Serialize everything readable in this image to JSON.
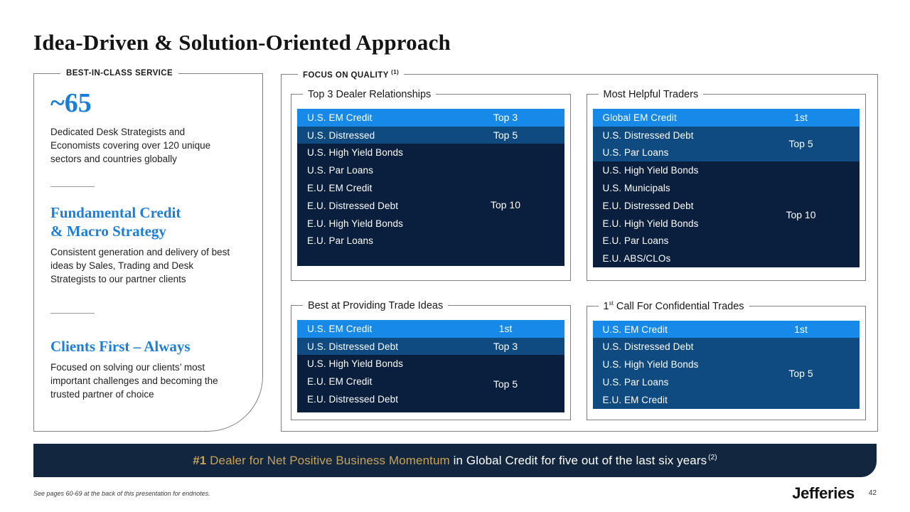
{
  "slide": {
    "title": "Idea-Driven & Solution-Oriented Approach",
    "footnote": "See pages 60-69 at the back of this presentation for endnotes.",
    "logo_text": "Jefferies",
    "page_number": "42"
  },
  "left_panel": {
    "legend": "BEST-IN-CLASS SERVICE",
    "stat_value": "~65",
    "stat_description": "Dedicated Desk Strategists and Economists covering over 120 unique sectors and countries globally",
    "sections": [
      {
        "heading_lines": [
          "Fundamental Credit",
          "& Macro Strategy"
        ],
        "body": "Consistent generation and delivery of best ideas by Sales, Trading and Desk Strategists to our partner clients"
      },
      {
        "heading_lines": [
          "Clients First – Always"
        ],
        "body": "Focused on solving our clients’ most important challenges and becoming the trusted partner of choice"
      }
    ]
  },
  "quality_panel": {
    "legend": "FOCUS ON QUALITY",
    "legend_sup": "(1)",
    "boxes": [
      {
        "title": "Top 3 Dealer Relationships",
        "groups": [
          {
            "value": "Top 3",
            "rows": [
              "U.S. EM Credit"
            ]
          },
          {
            "value": "Top 5",
            "rows": [
              "U.S. Distressed"
            ]
          },
          {
            "value": "Top 10",
            "rows": [
              "U.S. High Yield Bonds",
              "U.S. Par Loans",
              "E.U. EM Credit",
              "E.U. Distressed Debt",
              "E.U. High Yield Bonds",
              "E.U. Par Loans"
            ]
          }
        ]
      },
      {
        "title": "Most Helpful Traders",
        "groups": [
          {
            "value": "1st",
            "rows": [
              "Global EM Credit"
            ]
          },
          {
            "value": "Top 5",
            "rows": [
              "U.S. Distressed Debt",
              "U.S. Par Loans"
            ]
          },
          {
            "value": "Top 10",
            "rows": [
              "U.S. High Yield Bonds",
              "U.S. Municipals",
              "E.U. Distressed Debt",
              "E.U. High Yield Bonds",
              "E.U. Par Loans",
              "E.U. ABS/CLOs"
            ]
          }
        ]
      },
      {
        "title": "Best at Providing Trade Ideas",
        "groups": [
          {
            "value": "1st",
            "rows": [
              "U.S. EM Credit"
            ]
          },
          {
            "value": "Top 3",
            "rows": [
              "U.S. Distressed Debt"
            ]
          },
          {
            "value": "Top 5",
            "rows": [
              "U.S. High Yield Bonds",
              "E.U. EM Credit",
              "E.U. Distressed Debt"
            ]
          }
        ]
      },
      {
        "title_prefix": "1",
        "title_sup": "st",
        "title_rest": " Call For Confidential Trades",
        "groups": [
          {
            "value": "1st",
            "rows": [
              "U.S. EM Credit"
            ]
          },
          {
            "value": "Top 5",
            "rows": [
              "U.S. Distressed Debt",
              "U.S. High Yield Bonds",
              "U.S. Par Loans",
              "E.U. EM Credit"
            ]
          }
        ]
      }
    ]
  },
  "banner": {
    "num": "#1",
    "highlight": " Dealer for Net Positive Business Momentum",
    "rest": " in Global Credit for five out of the last six years",
    "sup": "(2)"
  },
  "colors": {
    "accent_blue": "#1b7edb",
    "row_bright_blue": "#1789e8",
    "row_medium_blue": "#0f4a80",
    "row_dark_navy": "#0a1f3d",
    "banner_navy": "#13263f",
    "banner_gold": "#c8a357",
    "border_gray": "#7f7f7f"
  }
}
